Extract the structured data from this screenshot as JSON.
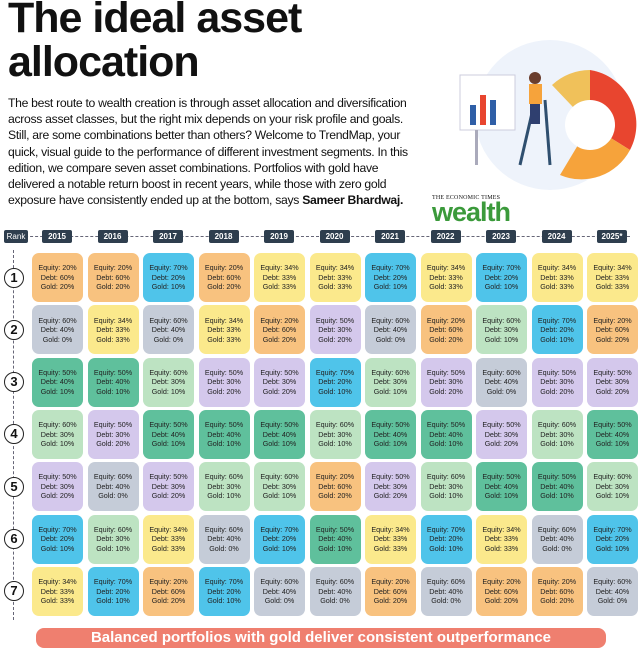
{
  "header": {
    "title": "The ideal asset allocation",
    "body": "The best route to wealth creation is through asset allocation and diversification across asset classes, but the right mix depends on your risk profile and goals. Still, are some combinations better than others? Welcome to TrendMap, your quick, visual guide to the performance of different investment segments. In this edition, we compare seven asset combinations. Portfolios with gold have delivered a notable return boost in recent years, while those with zero gold exposure have consistently ended up at the bottom, says",
    "byline": "Sameer Bhardwaj.",
    "brand_small": "THE ECONOMIC TIMES",
    "brand": "wealth"
  },
  "table": {
    "rank_label": "Rank",
    "years": [
      "2015",
      "2016",
      "2017",
      "2018",
      "2019",
      "2020",
      "2021",
      "2022",
      "2023",
      "2024",
      "2025*"
    ],
    "ranks": [
      "1",
      "2",
      "3",
      "4",
      "5",
      "6",
      "7"
    ],
    "rows": [
      [
        {
          "lines": [
            "Equity: 20%",
            "Debt: 60%",
            "Gold: 20%"
          ],
          "color": "#f8c27f"
        },
        {
          "lines": [
            "Equity: 20%",
            "Debt: 60%",
            "Gold: 20%"
          ],
          "color": "#f8c27f"
        },
        {
          "lines": [
            "Equity: 70%",
            "Debt: 20%",
            "Gold: 10%"
          ],
          "color": "#4fc4ea"
        },
        {
          "lines": [
            "Equity: 20%",
            "Debt: 60%",
            "Gold: 20%"
          ],
          "color": "#f8c27f"
        },
        {
          "lines": [
            "Equity: 34%",
            "Debt: 33%",
            "Gold: 33%"
          ],
          "color": "#fbe98c"
        },
        {
          "lines": [
            "Equity: 34%",
            "Debt: 33%",
            "Gold: 33%"
          ],
          "color": "#fbe98c"
        },
        {
          "lines": [
            "Equity: 70%",
            "Debt: 20%",
            "Gold: 10%"
          ],
          "color": "#4fc4ea"
        },
        {
          "lines": [
            "Equity: 34%",
            "Debt: 33%",
            "Gold: 33%"
          ],
          "color": "#fbe98c"
        },
        {
          "lines": [
            "Equity: 70%",
            "Debt: 20%",
            "Gold: 10%"
          ],
          "color": "#4fc4ea"
        },
        {
          "lines": [
            "Equity: 34%",
            "Debt: 33%",
            "Gold: 33%"
          ],
          "color": "#fbe98c"
        },
        {
          "lines": [
            "Equity: 34%",
            "Debt: 33%",
            "Gold: 33%"
          ],
          "color": "#fbe98c"
        }
      ],
      [
        {
          "lines": [
            "Equity: 60%",
            "Debt: 40%",
            "Gold: 0%"
          ],
          "color": "#c5ccd8"
        },
        {
          "lines": [
            "Equity: 34%",
            "Debt: 33%",
            "Gold: 33%"
          ],
          "color": "#fbe98c"
        },
        {
          "lines": [
            "Equity: 60%",
            "Debt: 40%",
            "Gold: 0%"
          ],
          "color": "#c5ccd8"
        },
        {
          "lines": [
            "Equity: 34%",
            "Debt: 33%",
            "Gold: 33%"
          ],
          "color": "#fbe98c"
        },
        {
          "lines": [
            "Equity: 20%",
            "Debt: 60%",
            "Gold: 20%"
          ],
          "color": "#f8c27f"
        },
        {
          "lines": [
            "Equity: 50%",
            "Debt: 30%",
            "Gold: 20%"
          ],
          "color": "#d4c8ec"
        },
        {
          "lines": [
            "Equity: 60%",
            "Debt: 40%",
            "Gold: 0%"
          ],
          "color": "#c5ccd8"
        },
        {
          "lines": [
            "Equity: 20%",
            "Debt: 60%",
            "Gold: 20%"
          ],
          "color": "#f8c27f"
        },
        {
          "lines": [
            "Equity: 60%",
            "Debt: 30%",
            "Gold: 10%"
          ],
          "color": "#bde3c2"
        },
        {
          "lines": [
            "Equity: 70%",
            "Debt: 20%",
            "Gold: 10%"
          ],
          "color": "#4fc4ea"
        },
        {
          "lines": [
            "Equity: 20%",
            "Debt: 60%",
            "Gold: 20%"
          ],
          "color": "#f8c27f"
        }
      ],
      [
        {
          "lines": [
            "Equity: 50%",
            "Debt: 40%",
            "Gold: 10%"
          ],
          "color": "#5fc09c"
        },
        {
          "lines": [
            "Equity: 50%",
            "Debt: 40%",
            "Gold: 10%"
          ],
          "color": "#5fc09c"
        },
        {
          "lines": [
            "Equity: 60%",
            "Debt: 30%",
            "Gold: 10%"
          ],
          "color": "#bde3c2"
        },
        {
          "lines": [
            "Equity: 50%",
            "Debt: 30%",
            "Gold: 20%"
          ],
          "color": "#d4c8ec"
        },
        {
          "lines": [
            "Equity: 50%",
            "Debt: 30%",
            "Gold: 20%"
          ],
          "color": "#d4c8ec"
        },
        {
          "lines": [
            "Equity: 70%",
            "Debt: 20%",
            "Gold: 10%"
          ],
          "color": "#4fc4ea"
        },
        {
          "lines": [
            "Equity: 60%",
            "Debt: 30%",
            "Gold: 10%"
          ],
          "color": "#bde3c2"
        },
        {
          "lines": [
            "Equity: 50%",
            "Debt: 30%",
            "Gold: 20%"
          ],
          "color": "#d4c8ec"
        },
        {
          "lines": [
            "Equity: 60%",
            "Debt: 40%",
            "Gold: 0%"
          ],
          "color": "#c5ccd8"
        },
        {
          "lines": [
            "Equity: 50%",
            "Debt: 30%",
            "Gold: 20%"
          ],
          "color": "#d4c8ec"
        },
        {
          "lines": [
            "Equity: 50%",
            "Debt: 30%",
            "Gold: 20%"
          ],
          "color": "#d4c8ec"
        }
      ],
      [
        {
          "lines": [
            "Equity: 60%",
            "Debt: 30%",
            "Gold: 10%"
          ],
          "color": "#bde3c2"
        },
        {
          "lines": [
            "Equity: 50%",
            "Debt: 30%",
            "Gold: 20%"
          ],
          "color": "#d4c8ec"
        },
        {
          "lines": [
            "Equity: 50%",
            "Debt: 40%",
            "Gold: 10%"
          ],
          "color": "#5fc09c"
        },
        {
          "lines": [
            "Equity: 50%",
            "Debt: 40%",
            "Gold: 10%"
          ],
          "color": "#5fc09c"
        },
        {
          "lines": [
            "Equity: 50%",
            "Debt: 40%",
            "Gold: 10%"
          ],
          "color": "#5fc09c"
        },
        {
          "lines": [
            "Equity: 60%",
            "Debt: 30%",
            "Gold: 10%"
          ],
          "color": "#bde3c2"
        },
        {
          "lines": [
            "Equity: 50%",
            "Debt: 40%",
            "Gold: 10%"
          ],
          "color": "#5fc09c"
        },
        {
          "lines": [
            "Equity: 50%",
            "Debt: 40%",
            "Gold: 10%"
          ],
          "color": "#5fc09c"
        },
        {
          "lines": [
            "Equity: 50%",
            "Debt: 30%",
            "Gold: 20%"
          ],
          "color": "#d4c8ec"
        },
        {
          "lines": [
            "Equity: 60%",
            "Debt: 30%",
            "Gold: 10%"
          ],
          "color": "#bde3c2"
        },
        {
          "lines": [
            "Equity: 50%",
            "Debt: 40%",
            "Gold: 10%"
          ],
          "color": "#5fc09c"
        }
      ],
      [
        {
          "lines": [
            "Equity: 50%",
            "Debt: 30%",
            "Gold: 20%"
          ],
          "color": "#d4c8ec"
        },
        {
          "lines": [
            "Equity: 60%",
            "Debt: 40%",
            "Gold: 0%"
          ],
          "color": "#c5ccd8"
        },
        {
          "lines": [
            "Equity: 50%",
            "Debt: 30%",
            "Gold: 20%"
          ],
          "color": "#d4c8ec"
        },
        {
          "lines": [
            "Equity: 60%",
            "Debt: 30%",
            "Gold: 10%"
          ],
          "color": "#bde3c2"
        },
        {
          "lines": [
            "Equity: 60%",
            "Debt: 30%",
            "Gold: 10%"
          ],
          "color": "#bde3c2"
        },
        {
          "lines": [
            "Equity: 20%",
            "Debt: 60%",
            "Gold: 20%"
          ],
          "color": "#f8c27f"
        },
        {
          "lines": [
            "Equity: 50%",
            "Debt: 30%",
            "Gold: 20%"
          ],
          "color": "#d4c8ec"
        },
        {
          "lines": [
            "Equity: 60%",
            "Debt: 30%",
            "Gold: 10%"
          ],
          "color": "#bde3c2"
        },
        {
          "lines": [
            "Equity: 50%",
            "Debt: 40%",
            "Gold: 10%"
          ],
          "color": "#5fc09c"
        },
        {
          "lines": [
            "Equity: 50%",
            "Debt: 40%",
            "Gold: 10%"
          ],
          "color": "#5fc09c"
        },
        {
          "lines": [
            "Equity: 60%",
            "Debt: 30%",
            "Gold: 10%"
          ],
          "color": "#bde3c2"
        }
      ],
      [
        {
          "lines": [
            "Equity: 70%",
            "Debt: 20%",
            "Gold: 10%"
          ],
          "color": "#4fc4ea"
        },
        {
          "lines": [
            "Equity: 60%",
            "Debt: 30%",
            "Gold: 10%"
          ],
          "color": "#bde3c2"
        },
        {
          "lines": [
            "Equity: 34%",
            "Debt: 33%",
            "Gold: 33%"
          ],
          "color": "#fbe98c"
        },
        {
          "lines": [
            "Equity: 60%",
            "Debt: 40%",
            "Gold: 0%"
          ],
          "color": "#c5ccd8"
        },
        {
          "lines": [
            "Equity: 70%",
            "Debt: 20%",
            "Gold: 10%"
          ],
          "color": "#4fc4ea"
        },
        {
          "lines": [
            "Equity: 50%",
            "Debt: 40%",
            "Gold: 10%"
          ],
          "color": "#5fc09c"
        },
        {
          "lines": [
            "Equity: 34%",
            "Debt: 33%",
            "Gold: 33%"
          ],
          "color": "#fbe98c"
        },
        {
          "lines": [
            "Equity: 70%",
            "Debt: 20%",
            "Gold: 10%"
          ],
          "color": "#4fc4ea"
        },
        {
          "lines": [
            "Equity: 34%",
            "Debt: 33%",
            "Gold: 33%"
          ],
          "color": "#fbe98c"
        },
        {
          "lines": [
            "Equity: 60%",
            "Debt: 40%",
            "Gold: 0%"
          ],
          "color": "#c5ccd8"
        },
        {
          "lines": [
            "Equity: 70%",
            "Debt: 20%",
            "Gold: 10%"
          ],
          "color": "#4fc4ea"
        }
      ],
      [
        {
          "lines": [
            "Equity: 34%",
            "Debt: 33%",
            "Gold: 33%"
          ],
          "color": "#fbe98c"
        },
        {
          "lines": [
            "Equity: 70%",
            "Debt: 20%",
            "Gold: 10%"
          ],
          "color": "#4fc4ea"
        },
        {
          "lines": [
            "Equity: 20%",
            "Debt: 60%",
            "Gold: 20%"
          ],
          "color": "#f8c27f"
        },
        {
          "lines": [
            "Equity: 70%",
            "Debt: 20%",
            "Gold: 10%"
          ],
          "color": "#4fc4ea"
        },
        {
          "lines": [
            "Equity: 60%",
            "Debt: 40%",
            "Gold: 0%"
          ],
          "color": "#c5ccd8"
        },
        {
          "lines": [
            "Equity: 60%",
            "Debt: 40%",
            "Gold: 0%"
          ],
          "color": "#c5ccd8"
        },
        {
          "lines": [
            "Equity: 20%",
            "Debt: 60%",
            "Gold: 20%"
          ],
          "color": "#f8c27f"
        },
        {
          "lines": [
            "Equity: 60%",
            "Debt: 40%",
            "Gold: 0%"
          ],
          "color": "#c5ccd8"
        },
        {
          "lines": [
            "Equity: 20%",
            "Debt: 60%",
            "Gold: 20%"
          ],
          "color": "#f8c27f"
        },
        {
          "lines": [
            "Equity: 20%",
            "Debt: 60%",
            "Gold: 20%"
          ],
          "color": "#f8c27f"
        },
        {
          "lines": [
            "Equity: 60%",
            "Debt: 40%",
            "Gold: 0%"
          ],
          "color": "#c5ccd8"
        }
      ]
    ]
  },
  "footer": {
    "banner": "Balanced portfolios with gold deliver consistent outperformance"
  }
}
